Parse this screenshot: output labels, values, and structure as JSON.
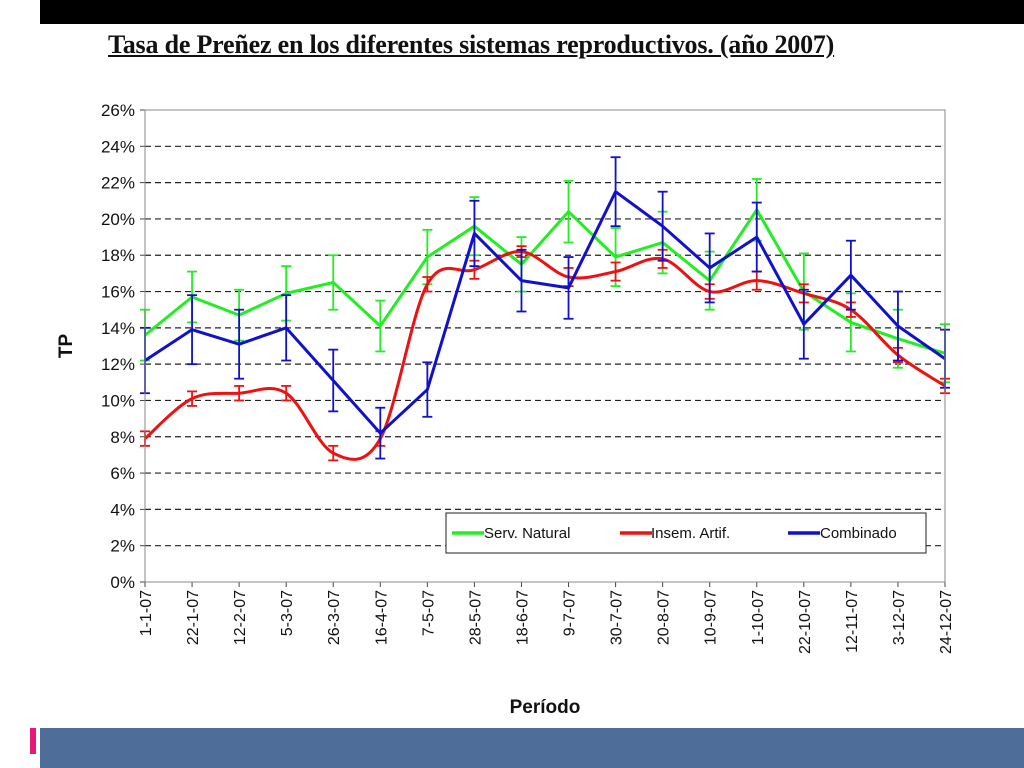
{
  "title": "Tasa de Preñez en los diferentes sistemas reproductivos. (año 2007)",
  "chart_data": {
    "type": "line",
    "xlabel": "Período",
    "ylabel": "TP",
    "ylim": [
      0,
      26
    ],
    "y_ticks": [
      "0%",
      "2%",
      "4%",
      "6%",
      "8%",
      "10%",
      "12%",
      "14%",
      "16%",
      "18%",
      "20%",
      "22%",
      "24%",
      "26%"
    ],
    "grid": "horizontal dashed",
    "legend_position": "bottom-right",
    "categories": [
      "1-1-07",
      "22-1-07",
      "12-2-07",
      "5-3-07",
      "26-3-07",
      "16-4-07",
      "7-5-07",
      "28-5-07",
      "18-6-07",
      "9-7-07",
      "30-7-07",
      "20-8-07",
      "10-9-07",
      "1-10-07",
      "22-10-07",
      "12-11-07",
      "3-12-07",
      "24-12-07"
    ],
    "series": [
      {
        "name": "Serv. Natural",
        "color": "#22ee22",
        "smooth": false,
        "values": [
          13.6,
          15.7,
          14.7,
          15.9,
          16.5,
          14.1,
          17.9,
          19.6,
          17.5,
          20.4,
          17.9,
          18.7,
          16.6,
          20.5,
          16.0,
          14.3,
          13.4,
          12.6
        ],
        "errors": [
          1.4,
          1.4,
          1.4,
          1.5,
          1.5,
          1.4,
          1.5,
          1.6,
          1.5,
          1.7,
          1.6,
          1.7,
          1.6,
          1.7,
          2.1,
          1.6,
          1.6,
          1.6
        ]
      },
      {
        "name": "Insem. Artif.",
        "color": "#ee1111",
        "smooth": true,
        "values": [
          7.9,
          10.1,
          10.4,
          10.4,
          7.1,
          7.9,
          16.4,
          17.2,
          18.2,
          16.8,
          17.1,
          17.8,
          16.0,
          16.6,
          15.9,
          15.0,
          12.5,
          10.8
        ],
        "errors": [
          0.4,
          0.4,
          0.4,
          0.4,
          0.4,
          0.4,
          0.4,
          0.5,
          0.3,
          0.5,
          0.5,
          0.5,
          0.4,
          0.5,
          0.5,
          0.4,
          0.4,
          0.4
        ]
      },
      {
        "name": "Combinado",
        "color": "#1111cc",
        "smooth": false,
        "values": [
          12.2,
          13.9,
          13.1,
          14.0,
          11.1,
          8.2,
          10.6,
          19.2,
          16.6,
          16.2,
          21.5,
          19.6,
          17.3,
          19.0,
          14.2,
          16.9,
          14.1,
          12.3
        ],
        "errors": [
          1.8,
          1.9,
          1.9,
          1.8,
          1.7,
          1.4,
          1.5,
          1.8,
          1.7,
          1.7,
          1.9,
          1.9,
          1.9,
          1.9,
          1.9,
          1.9,
          1.9,
          1.6
        ]
      }
    ]
  }
}
